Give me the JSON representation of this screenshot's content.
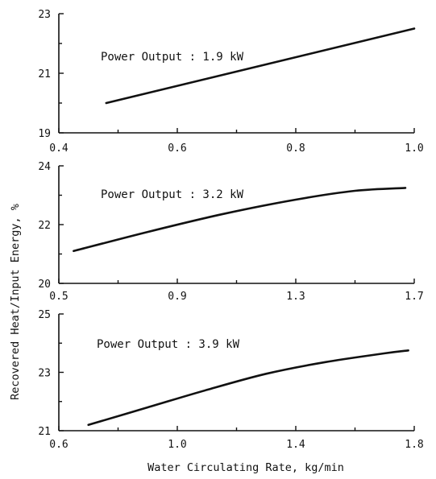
{
  "chart_data": [
    {
      "type": "line",
      "annotation": "Power Output : 1.9 kW",
      "xlim": [
        0.4,
        1.0
      ],
      "ylim": [
        19,
        23
      ],
      "xticks": [
        "0.4",
        "0.6",
        "0.8",
        "1.0"
      ],
      "yticks": [
        "19",
        "21",
        "23"
      ],
      "series": [
        {
          "x": [
            0.48,
            1.0
          ],
          "y": [
            20.0,
            22.5
          ]
        }
      ]
    },
    {
      "type": "line",
      "annotation": "Power Output : 3.2 kW",
      "xlim": [
        0.5,
        1.7
      ],
      "ylim": [
        20,
        24
      ],
      "xticks": [
        "0.5",
        "0.9",
        "1.3",
        "1.7"
      ],
      "yticks": [
        "20",
        "22",
        "24"
      ],
      "series": [
        {
          "x": [
            0.55,
            0.8,
            1.05,
            1.3,
            1.5,
            1.67
          ],
          "y": [
            21.1,
            21.75,
            22.35,
            22.85,
            23.15,
            23.25
          ]
        }
      ]
    },
    {
      "type": "line",
      "annotation": "Power Output : 3.9 kW",
      "xlim": [
        0.6,
        1.8
      ],
      "ylim": [
        21,
        25
      ],
      "xticks": [
        "0.6",
        "1.0",
        "1.4",
        "1.8"
      ],
      "yticks": [
        "21",
        "23",
        "25"
      ],
      "series": [
        {
          "x": [
            0.7,
            0.9,
            1.1,
            1.3,
            1.5,
            1.7,
            1.78
          ],
          "y": [
            21.2,
            21.8,
            22.4,
            22.95,
            23.35,
            23.65,
            23.75
          ]
        }
      ]
    }
  ],
  "ylabel": "Recovered Heat/Input Energy, %",
  "xlabel": "Water Circulating Rate, kg/min"
}
